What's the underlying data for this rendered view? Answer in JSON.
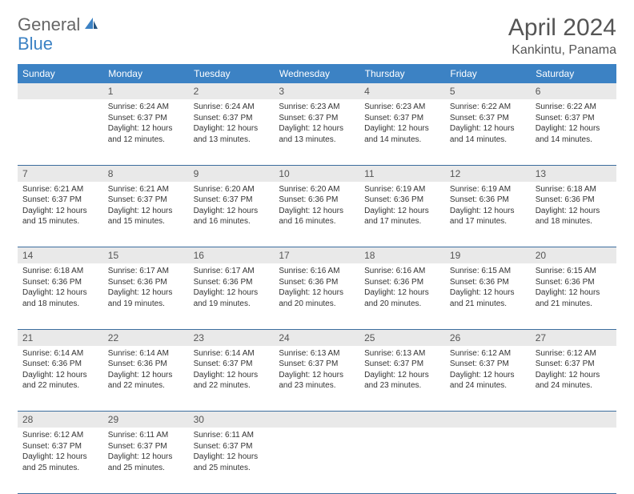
{
  "logo": {
    "part1": "General",
    "part2": "Blue"
  },
  "title": "April 2024",
  "location": "Kankintu, Panama",
  "colors": {
    "header_bg": "#3c82c4",
    "header_text": "#ffffff",
    "daynum_bg": "#e9e9e9",
    "border": "#3c6d9e",
    "logo_gray": "#666666",
    "logo_blue": "#3c82c4",
    "text": "#333333"
  },
  "weekdays": [
    "Sunday",
    "Monday",
    "Tuesday",
    "Wednesday",
    "Thursday",
    "Friday",
    "Saturday"
  ],
  "weeks": [
    {
      "nums": [
        "",
        "1",
        "2",
        "3",
        "4",
        "5",
        "6"
      ],
      "cells": [
        null,
        {
          "sunrise": "Sunrise: 6:24 AM",
          "sunset": "Sunset: 6:37 PM",
          "day1": "Daylight: 12 hours",
          "day2": "and 12 minutes."
        },
        {
          "sunrise": "Sunrise: 6:24 AM",
          "sunset": "Sunset: 6:37 PM",
          "day1": "Daylight: 12 hours",
          "day2": "and 13 minutes."
        },
        {
          "sunrise": "Sunrise: 6:23 AM",
          "sunset": "Sunset: 6:37 PM",
          "day1": "Daylight: 12 hours",
          "day2": "and 13 minutes."
        },
        {
          "sunrise": "Sunrise: 6:23 AM",
          "sunset": "Sunset: 6:37 PM",
          "day1": "Daylight: 12 hours",
          "day2": "and 14 minutes."
        },
        {
          "sunrise": "Sunrise: 6:22 AM",
          "sunset": "Sunset: 6:37 PM",
          "day1": "Daylight: 12 hours",
          "day2": "and 14 minutes."
        },
        {
          "sunrise": "Sunrise: 6:22 AM",
          "sunset": "Sunset: 6:37 PM",
          "day1": "Daylight: 12 hours",
          "day2": "and 14 minutes."
        }
      ]
    },
    {
      "nums": [
        "7",
        "8",
        "9",
        "10",
        "11",
        "12",
        "13"
      ],
      "cells": [
        {
          "sunrise": "Sunrise: 6:21 AM",
          "sunset": "Sunset: 6:37 PM",
          "day1": "Daylight: 12 hours",
          "day2": "and 15 minutes."
        },
        {
          "sunrise": "Sunrise: 6:21 AM",
          "sunset": "Sunset: 6:37 PM",
          "day1": "Daylight: 12 hours",
          "day2": "and 15 minutes."
        },
        {
          "sunrise": "Sunrise: 6:20 AM",
          "sunset": "Sunset: 6:37 PM",
          "day1": "Daylight: 12 hours",
          "day2": "and 16 minutes."
        },
        {
          "sunrise": "Sunrise: 6:20 AM",
          "sunset": "Sunset: 6:36 PM",
          "day1": "Daylight: 12 hours",
          "day2": "and 16 minutes."
        },
        {
          "sunrise": "Sunrise: 6:19 AM",
          "sunset": "Sunset: 6:36 PM",
          "day1": "Daylight: 12 hours",
          "day2": "and 17 minutes."
        },
        {
          "sunrise": "Sunrise: 6:19 AM",
          "sunset": "Sunset: 6:36 PM",
          "day1": "Daylight: 12 hours",
          "day2": "and 17 minutes."
        },
        {
          "sunrise": "Sunrise: 6:18 AM",
          "sunset": "Sunset: 6:36 PM",
          "day1": "Daylight: 12 hours",
          "day2": "and 18 minutes."
        }
      ]
    },
    {
      "nums": [
        "14",
        "15",
        "16",
        "17",
        "18",
        "19",
        "20"
      ],
      "cells": [
        {
          "sunrise": "Sunrise: 6:18 AM",
          "sunset": "Sunset: 6:36 PM",
          "day1": "Daylight: 12 hours",
          "day2": "and 18 minutes."
        },
        {
          "sunrise": "Sunrise: 6:17 AM",
          "sunset": "Sunset: 6:36 PM",
          "day1": "Daylight: 12 hours",
          "day2": "and 19 minutes."
        },
        {
          "sunrise": "Sunrise: 6:17 AM",
          "sunset": "Sunset: 6:36 PM",
          "day1": "Daylight: 12 hours",
          "day2": "and 19 minutes."
        },
        {
          "sunrise": "Sunrise: 6:16 AM",
          "sunset": "Sunset: 6:36 PM",
          "day1": "Daylight: 12 hours",
          "day2": "and 20 minutes."
        },
        {
          "sunrise": "Sunrise: 6:16 AM",
          "sunset": "Sunset: 6:36 PM",
          "day1": "Daylight: 12 hours",
          "day2": "and 20 minutes."
        },
        {
          "sunrise": "Sunrise: 6:15 AM",
          "sunset": "Sunset: 6:36 PM",
          "day1": "Daylight: 12 hours",
          "day2": "and 21 minutes."
        },
        {
          "sunrise": "Sunrise: 6:15 AM",
          "sunset": "Sunset: 6:36 PM",
          "day1": "Daylight: 12 hours",
          "day2": "and 21 minutes."
        }
      ]
    },
    {
      "nums": [
        "21",
        "22",
        "23",
        "24",
        "25",
        "26",
        "27"
      ],
      "cells": [
        {
          "sunrise": "Sunrise: 6:14 AM",
          "sunset": "Sunset: 6:36 PM",
          "day1": "Daylight: 12 hours",
          "day2": "and 22 minutes."
        },
        {
          "sunrise": "Sunrise: 6:14 AM",
          "sunset": "Sunset: 6:36 PM",
          "day1": "Daylight: 12 hours",
          "day2": "and 22 minutes."
        },
        {
          "sunrise": "Sunrise: 6:14 AM",
          "sunset": "Sunset: 6:37 PM",
          "day1": "Daylight: 12 hours",
          "day2": "and 22 minutes."
        },
        {
          "sunrise": "Sunrise: 6:13 AM",
          "sunset": "Sunset: 6:37 PM",
          "day1": "Daylight: 12 hours",
          "day2": "and 23 minutes."
        },
        {
          "sunrise": "Sunrise: 6:13 AM",
          "sunset": "Sunset: 6:37 PM",
          "day1": "Daylight: 12 hours",
          "day2": "and 23 minutes."
        },
        {
          "sunrise": "Sunrise: 6:12 AM",
          "sunset": "Sunset: 6:37 PM",
          "day1": "Daylight: 12 hours",
          "day2": "and 24 minutes."
        },
        {
          "sunrise": "Sunrise: 6:12 AM",
          "sunset": "Sunset: 6:37 PM",
          "day1": "Daylight: 12 hours",
          "day2": "and 24 minutes."
        }
      ]
    },
    {
      "nums": [
        "28",
        "29",
        "30",
        "",
        "",
        "",
        ""
      ],
      "cells": [
        {
          "sunrise": "Sunrise: 6:12 AM",
          "sunset": "Sunset: 6:37 PM",
          "day1": "Daylight: 12 hours",
          "day2": "and 25 minutes."
        },
        {
          "sunrise": "Sunrise: 6:11 AM",
          "sunset": "Sunset: 6:37 PM",
          "day1": "Daylight: 12 hours",
          "day2": "and 25 minutes."
        },
        {
          "sunrise": "Sunrise: 6:11 AM",
          "sunset": "Sunset: 6:37 PM",
          "day1": "Daylight: 12 hours",
          "day2": "and 25 minutes."
        },
        null,
        null,
        null,
        null
      ]
    }
  ]
}
